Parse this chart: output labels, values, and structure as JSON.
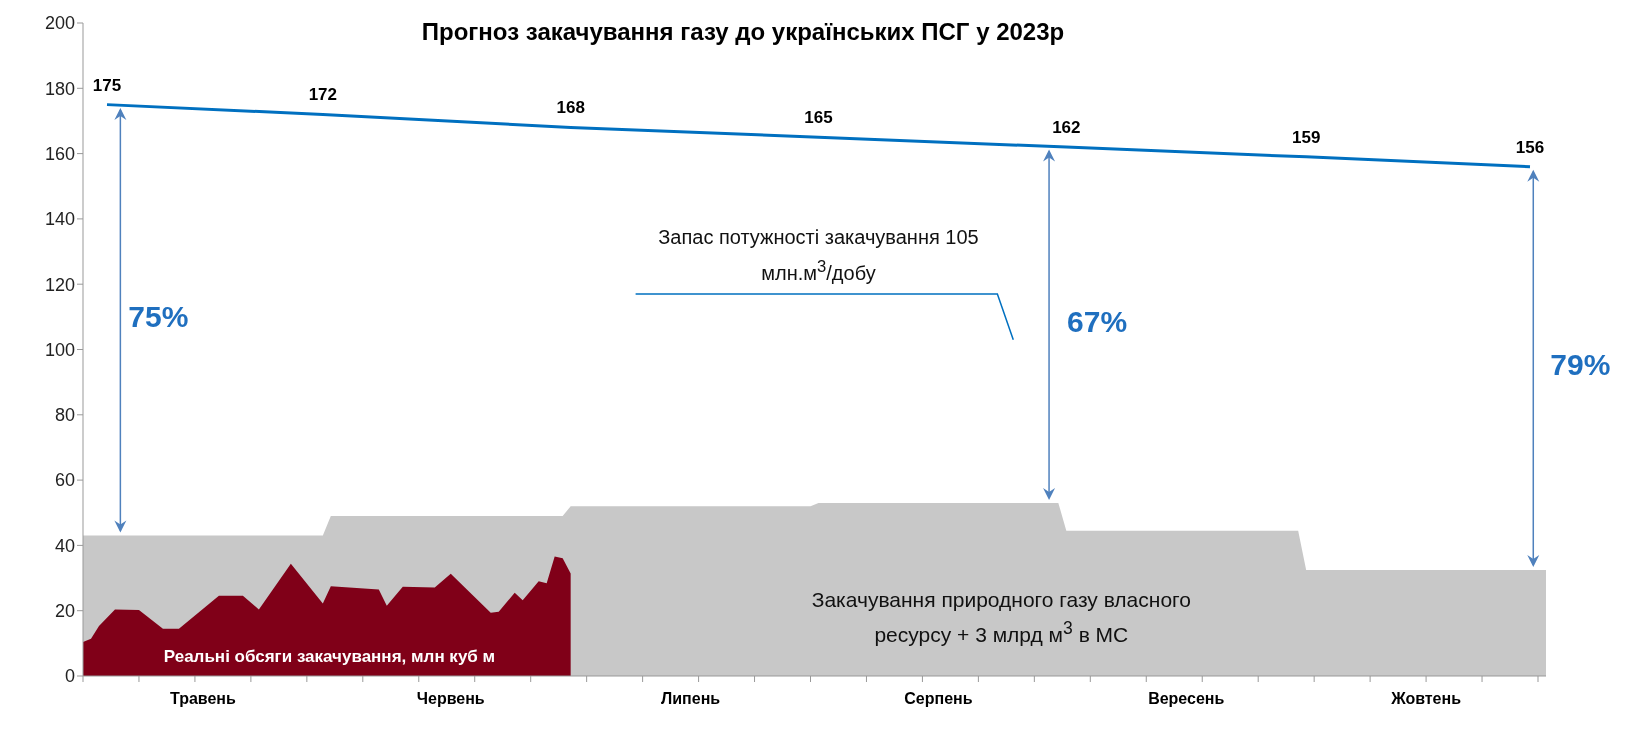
{
  "chart_data": {
    "type": "area",
    "title": "Прогноз закачування газу до українських ПСГ у 2023р",
    "categories": [
      null,
      null,
      null,
      null,
      null,
      null,
      null,
      null,
      null,
      null,
      null,
      null,
      null,
      null,
      null,
      "Травень",
      null,
      null,
      null,
      null,
      null,
      null,
      null,
      null,
      null,
      null,
      null,
      null,
      null,
      null,
      null,
      null,
      null,
      null,
      null,
      null,
      null,
      null,
      null,
      null,
      null,
      null,
      null,
      null,
      null,
      null,
      "Червень",
      null,
      null,
      null,
      null,
      null,
      null,
      null,
      null,
      null,
      null,
      null,
      null,
      null,
      null,
      null,
      null,
      null,
      null,
      null,
      null,
      null,
      null,
      null,
      null,
      null,
      null,
      null,
      null,
      null,
      "Липень",
      null,
      null,
      null,
      null,
      null,
      null,
      null,
      null,
      null,
      null,
      null,
      null,
      null,
      null,
      null,
      null,
      null,
      null,
      null,
      null,
      null,
      null,
      null,
      null,
      null,
      null,
      null,
      null,
      null,
      null,
      "Серпень",
      null,
      null,
      null,
      null,
      null,
      null,
      null,
      null,
      null,
      null,
      null,
      null,
      null,
      null,
      null,
      null,
      null,
      null,
      null,
      null,
      null,
      null,
      null,
      null,
      null,
      null,
      null,
      null,
      null,
      null,
      "Вересень",
      null,
      null,
      null,
      null,
      null,
      null,
      null,
      null,
      null,
      null,
      null,
      null,
      null,
      null,
      null,
      null,
      null,
      null,
      null,
      null,
      null,
      null,
      null,
      null,
      null,
      null,
      null,
      null,
      null,
      "Жовтень",
      null,
      null,
      null,
      null,
      null,
      null,
      null,
      null,
      null,
      null,
      null,
      null,
      null,
      null,
      null
    ],
    "ylim": [
      0,
      200
    ],
    "yticks": [
      0,
      20,
      40,
      60,
      80,
      100,
      120,
      140,
      160,
      180,
      200
    ],
    "grid": false,
    "legend": false,
    "series": [
      {
        "name": "Закачування природного газу власного ресурсу + 3 млрд м$^{3}$ в МС",
        "color": "#c8c8c8",
        "values": [
          43,
          43,
          43,
          43,
          43,
          43,
          43,
          43,
          43,
          43,
          43,
          43,
          43,
          43,
          43,
          43,
          43,
          43,
          43,
          43,
          43,
          43,
          43,
          43,
          43,
          43,
          43,
          43,
          43,
          43,
          43,
          49,
          49,
          49,
          49,
          49,
          49,
          49,
          49,
          49,
          49,
          49,
          49,
          49,
          49,
          49,
          49,
          49,
          49,
          49,
          49,
          49,
          49,
          49,
          49,
          49,
          49,
          49,
          49,
          49,
          49,
          52,
          52,
          52,
          52,
          52,
          52,
          52,
          52,
          52,
          52,
          52,
          52,
          52,
          52,
          52,
          52,
          52,
          52,
          52,
          52,
          52,
          52,
          52,
          52,
          52,
          52,
          52,
          52,
          52,
          52,
          52,
          53,
          53,
          53,
          53,
          53,
          53,
          53,
          53,
          53,
          53,
          53,
          53,
          53,
          53,
          53,
          53,
          53,
          53,
          53,
          53,
          53,
          53,
          53,
          53,
          53,
          53,
          53,
          53,
          53,
          53,
          53,
          44.5,
          44.5,
          44.5,
          44.5,
          44.5,
          44.5,
          44.5,
          44.5,
          44.5,
          44.5,
          44.5,
          44.5,
          44.5,
          44.5,
          44.5,
          44.5,
          44.5,
          44.5,
          44.5,
          44.5,
          44.5,
          44.5,
          44.5,
          44.5,
          44.5,
          44.5,
          44.5,
          44.5,
          44.5,
          44.5,
          32.5,
          32.5,
          32.5,
          32.5,
          32.5,
          32.5,
          32.5,
          32.5,
          32.5,
          32.5,
          32.5,
          32.5,
          32.5,
          32.5,
          32.5,
          32.5,
          32.5,
          32.5,
          32.5,
          32.5,
          32.5,
          32.5,
          32.5,
          32.5,
          32.5,
          32.5,
          32.5,
          32.5,
          32.5,
          32.5,
          32.5
        ]
      },
      {
        "name": "Реальні обсяги закачування, млн куб м",
        "color": "#800018",
        "values": [
          10.4,
          11.4,
          15.3,
          null,
          20.4,
          null,
          null,
          20.2,
          null,
          null,
          14.5,
          null,
          14.5,
          null,
          null,
          null,
          null,
          24.6,
          null,
          null,
          24.6,
          null,
          20.4,
          null,
          null,
          null,
          34.4,
          null,
          null,
          null,
          22.2,
          27.5,
          null,
          null,
          null,
          null,
          null,
          26.5,
          21.5,
          null,
          27.3,
          null,
          null,
          null,
          27.1,
          null,
          31.3,
          null,
          null,
          null,
          null,
          19.4,
          19.7,
          null,
          25.5,
          23.2,
          null,
          29,
          28.4,
          36.6,
          36.1,
          31.4,
          null,
          null,
          null,
          null,
          null,
          null,
          null,
          null,
          null,
          null,
          null,
          null,
          null,
          null,
          null,
          null,
          null,
          null,
          null,
          null,
          null,
          null,
          null,
          null,
          null,
          null,
          null,
          null,
          null,
          null,
          null,
          null,
          null,
          null,
          null,
          null,
          null,
          null,
          null,
          null,
          null,
          null,
          null,
          null,
          null,
          null,
          null,
          null,
          null,
          null,
          null,
          null,
          null,
          null,
          null,
          null,
          null,
          null,
          null,
          null,
          null,
          null,
          null,
          null,
          null,
          null,
          null,
          null,
          null,
          null,
          null,
          null,
          null,
          null,
          null,
          null,
          null,
          null,
          null,
          null,
          null,
          null,
          null,
          null,
          null,
          null,
          null,
          null,
          null,
          null,
          null,
          null,
          null,
          null,
          null,
          null,
          null,
          null,
          null,
          null,
          null,
          null,
          null,
          null,
          null,
          null,
          null,
          null,
          null,
          null,
          null,
          null,
          null,
          null,
          null,
          null,
          null,
          null,
          null,
          null,
          null,
          null
        ]
      },
      {
        "type": "line",
        "color": "#0070c0",
        "marker": "none",
        "data_labels": true,
        "values": [
          null,
          null,
          null,
          175,
          null,
          null,
          null,
          null,
          null,
          null,
          null,
          null,
          null,
          null,
          null,
          null,
          null,
          null,
          null,
          null,
          null,
          null,
          null,
          null,
          null,
          null,
          null,
          null,
          null,
          null,
          172,
          null,
          null,
          null,
          null,
          null,
          null,
          null,
          null,
          null,
          null,
          null,
          null,
          null,
          null,
          null,
          null,
          null,
          null,
          null,
          null,
          null,
          null,
          null,
          null,
          null,
          null,
          null,
          null,
          null,
          null,
          168,
          null,
          null,
          null,
          null,
          null,
          null,
          null,
          null,
          null,
          null,
          null,
          null,
          null,
          null,
          null,
          null,
          null,
          null,
          null,
          null,
          null,
          null,
          null,
          null,
          null,
          null,
          null,
          null,
          null,
          null,
          165,
          null,
          null,
          null,
          null,
          null,
          null,
          null,
          null,
          null,
          null,
          null,
          null,
          null,
          null,
          null,
          null,
          null,
          null,
          null,
          null,
          null,
          null,
          null,
          null,
          null,
          null,
          null,
          null,
          null,
          null,
          162,
          null,
          null,
          null,
          null,
          null,
          null,
          null,
          null,
          null,
          null,
          null,
          null,
          null,
          null,
          null,
          null,
          null,
          null,
          null,
          null,
          null,
          null,
          null,
          null,
          null,
          null,
          null,
          null,
          null,
          159,
          null,
          null,
          null,
          null,
          null,
          null,
          null,
          null,
          null,
          null,
          null,
          null,
          null,
          null,
          null,
          null,
          null,
          null,
          null,
          null,
          null,
          null,
          null,
          null,
          null,
          null,
          null,
          156,
          null,
          null
        ]
      }
    ],
    "annotations": [
      "Запас потужності закачування 105 млн.м$^{3}$/добу",
      "75%",
      "67%",
      "79%"
    ]
  }
}
